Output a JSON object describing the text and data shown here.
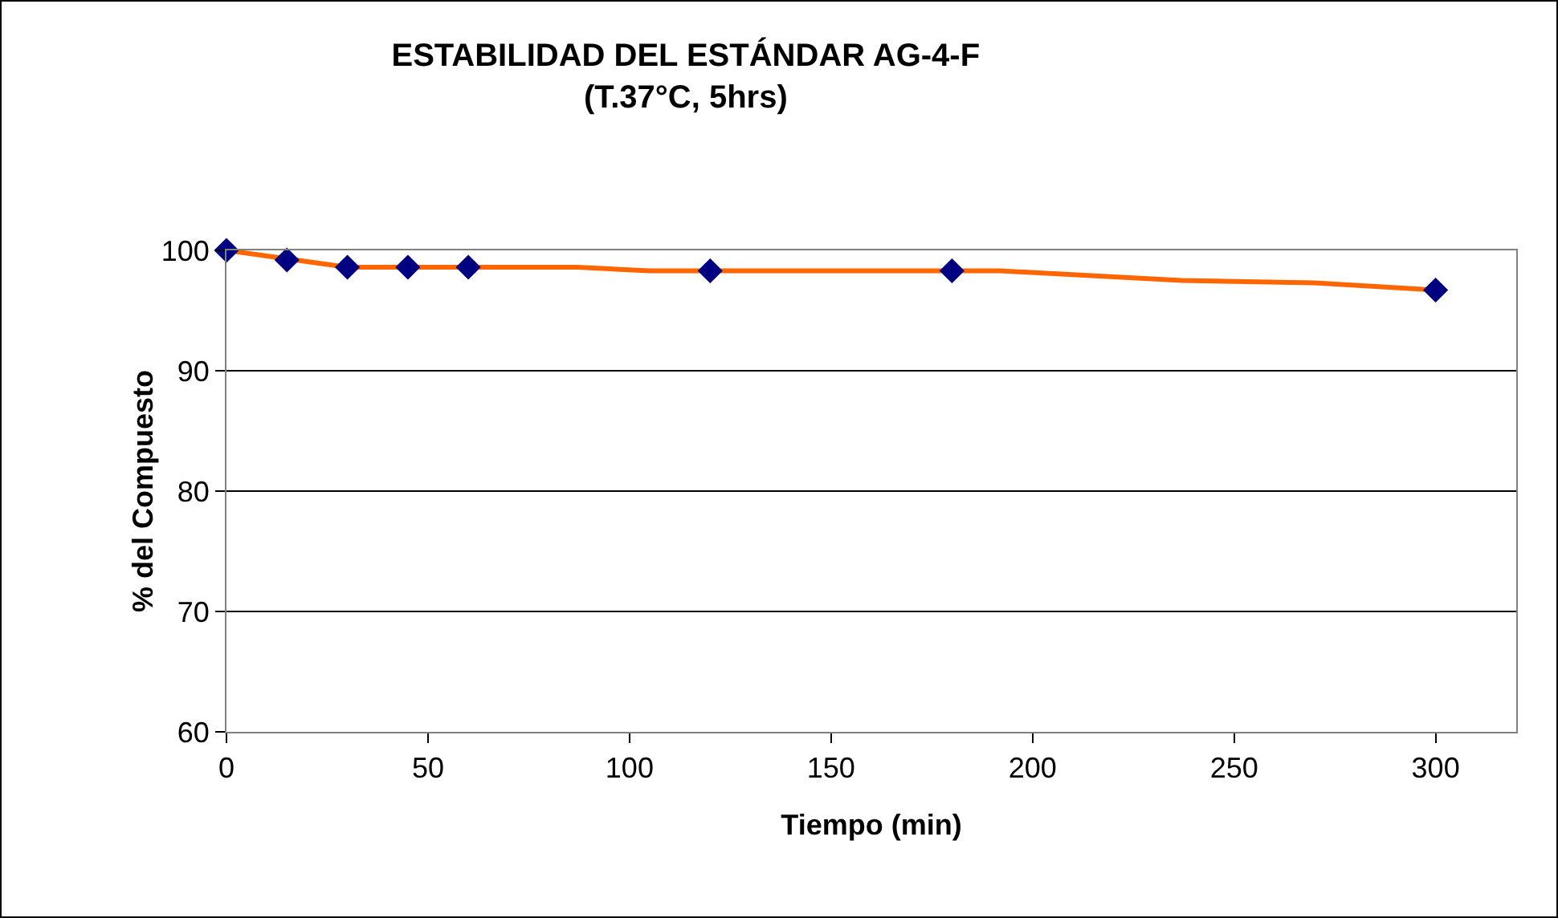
{
  "chart_data": {
    "type": "line",
    "title": "ESTABILIDAD DEL ESTÁNDAR AG-4-F",
    "subtitle": "(T.37°C, 5hrs)",
    "xlabel": "Tiempo (min)",
    "ylabel": "% del Compuesto",
    "series": [
      {
        "color": "#ff6600",
        "x": [
          0,
          15,
          30,
          87,
          105,
          192,
          237,
          270,
          300
        ],
        "values": [
          100,
          99.3,
          98.6,
          98.6,
          98.3,
          98.3,
          97.5,
          97.3,
          96.7
        ],
        "marker": "none"
      },
      {
        "type": "scatter",
        "color": "#000080",
        "x": [
          0,
          15,
          30,
          45,
          60,
          120,
          180,
          300
        ],
        "values": [
          100,
          99.2,
          98.6,
          98.6,
          98.6,
          98.3,
          98.3,
          96.7
        ],
        "marker": "diamond"
      }
    ],
    "xlim": [
      0,
      320
    ],
    "xticks": [
      0,
      50,
      100,
      150,
      200,
      250,
      300
    ],
    "ylim": [
      60,
      100
    ],
    "yticks": [
      60,
      70,
      80,
      90,
      100
    ],
    "grid": "y"
  }
}
